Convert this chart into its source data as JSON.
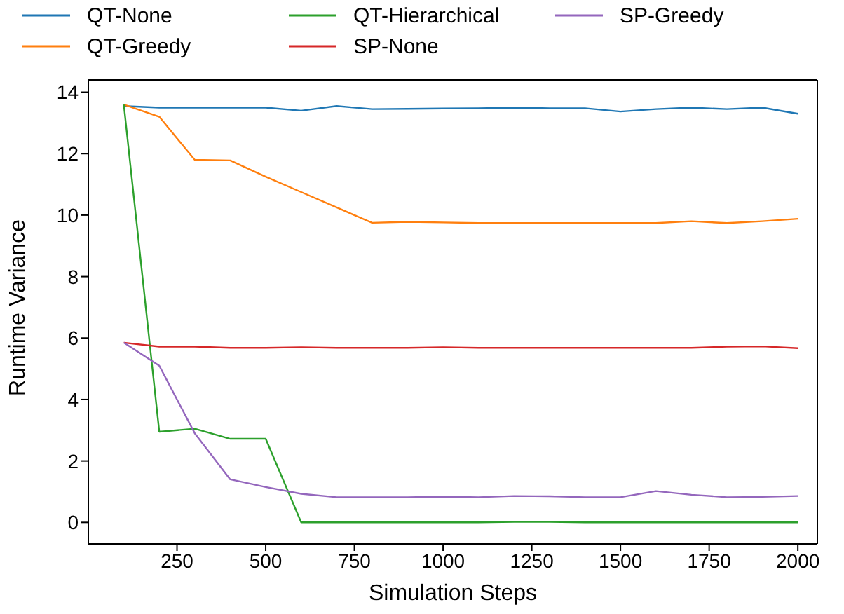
{
  "chart_data": {
    "type": "line",
    "xlabel": "Simulation Steps",
    "ylabel": "Runtime Variance",
    "x": [
      100,
      200,
      300,
      400,
      500,
      600,
      700,
      800,
      900,
      1000,
      1100,
      1200,
      1300,
      1400,
      1500,
      1600,
      1700,
      1800,
      1900,
      2000
    ],
    "series": [
      {
        "name": "QT-None",
        "color": "#1f77b4",
        "values": [
          13.55,
          13.5,
          13.5,
          13.5,
          13.5,
          13.4,
          13.55,
          13.45,
          13.46,
          13.47,
          13.48,
          13.5,
          13.48,
          13.48,
          13.37,
          13.45,
          13.5,
          13.45,
          13.5,
          13.3
        ]
      },
      {
        "name": "QT-Greedy",
        "color": "#ff7f0e",
        "values": [
          13.6,
          13.2,
          11.8,
          11.78,
          11.25,
          10.75,
          10.25,
          9.75,
          9.78,
          9.76,
          9.74,
          9.74,
          9.74,
          9.74,
          9.74,
          9.74,
          9.8,
          9.74,
          9.8,
          9.88
        ]
      },
      {
        "name": "QT-Hierarchical",
        "color": "#2ca02c",
        "values": [
          13.6,
          2.95,
          3.05,
          2.72,
          2.72,
          0.0,
          0.0,
          0.0,
          0.0,
          0.0,
          0.0,
          0.02,
          0.02,
          0.0,
          0.0,
          0.0,
          0.0,
          0.0,
          0.0,
          0.0
        ]
      },
      {
        "name": "SP-None",
        "color": "#d62728",
        "values": [
          5.85,
          5.72,
          5.72,
          5.68,
          5.68,
          5.7,
          5.68,
          5.68,
          5.68,
          5.7,
          5.68,
          5.68,
          5.68,
          5.68,
          5.68,
          5.68,
          5.68,
          5.72,
          5.73,
          5.67
        ]
      },
      {
        "name": "SP-Greedy",
        "color": "#9467bd",
        "values": [
          5.85,
          5.1,
          2.9,
          1.4,
          1.15,
          0.93,
          0.82,
          0.82,
          0.82,
          0.84,
          0.82,
          0.86,
          0.85,
          0.82,
          0.82,
          1.02,
          0.9,
          0.82,
          0.83,
          0.86
        ]
      }
    ],
    "xlim": [
      0,
      2055
    ],
    "xticks": [
      250,
      500,
      750,
      1000,
      1250,
      1500,
      1750,
      2000
    ],
    "ylim": [
      -0.7,
      14.4
    ],
    "yticks": [
      0,
      2,
      4,
      6,
      8,
      10,
      12,
      14
    ],
    "grid": false,
    "legend": "top",
    "marker": "none",
    "line_style": "solid"
  }
}
